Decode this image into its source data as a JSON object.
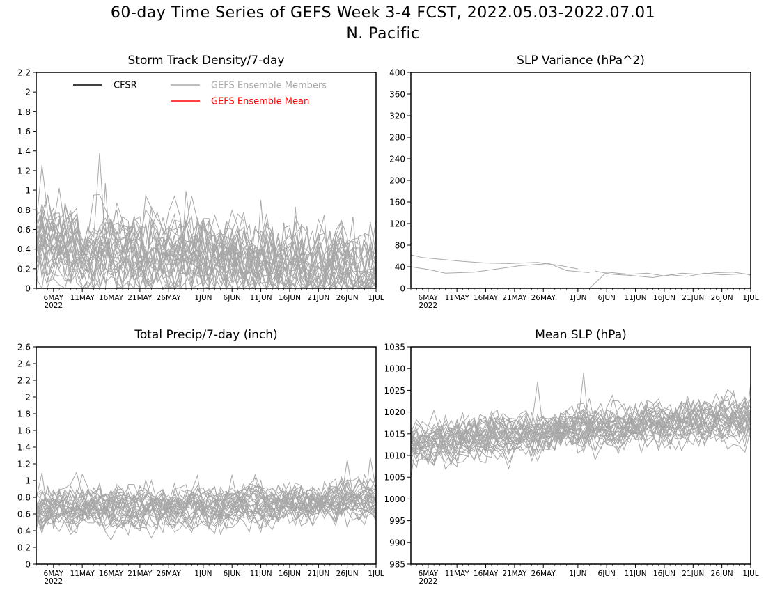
{
  "figure": {
    "title": "60-day Time Series of GEFS Week 3-4 FCST, 2022.05.03-2022.07.01",
    "subtitle": "N. Pacific"
  },
  "colors": {
    "cfsr": "#000000",
    "members": "#a8a8a8",
    "mean": "#ff0000",
    "axis": "#000000"
  },
  "legend": {
    "placement": "top",
    "entries": [
      {
        "label": "CFSR",
        "color": "#000000"
      },
      {
        "label": "GEFS Ensemble Members",
        "color": "#a8a8a8"
      },
      {
        "label": "GEFS Ensemble Mean",
        "color": "#ff0000"
      }
    ]
  },
  "x_axis": {
    "start_date": "2022-05-03",
    "end_date": "2022-07-01",
    "tick_dates": [
      "2022-05-06",
      "2022-05-11",
      "2022-05-16",
      "2022-05-21",
      "2022-05-26",
      "2022-06-01",
      "2022-06-06",
      "2022-06-11",
      "2022-06-16",
      "2022-06-21",
      "2022-06-26",
      "2022-07-01"
    ],
    "tick_labels": [
      "6MAY",
      "11MAY",
      "16MAY",
      "21MAY",
      "26MAY",
      "1JUN",
      "6JUN",
      "11JUN",
      "16JUN",
      "21JUN",
      "26JUN",
      "1JUL"
    ],
    "year_label": "2022"
  },
  "chart_data": [
    {
      "type": "line",
      "title": "Storm Track Density/7-day",
      "xlabel": "",
      "ylabel": "",
      "ylim": [
        0,
        2.2
      ],
      "yticks": [
        0,
        0.2,
        0.4,
        0.6,
        0.8,
        1,
        1.2,
        1.4,
        1.6,
        1.8,
        2,
        2.2
      ],
      "ytick_labels": [
        "0",
        "0.2",
        "0.4",
        "0.6",
        "0.8",
        "1",
        "1.2",
        "1.4",
        "1.6",
        "1.8",
        "2",
        "2.2"
      ],
      "grid": false,
      "members": {
        "count": 31,
        "mean_start": 0.45,
        "mean_end": 0.15,
        "spread": 0.22,
        "peaks": [
          {
            "date": "2022-05-04",
            "value": 1.26
          },
          {
            "date": "2022-05-14",
            "value": 1.38
          },
          {
            "date": "2022-05-15",
            "value": 1.07
          },
          {
            "date": "2022-05-29",
            "value": 0.99
          },
          {
            "date": "2022-06-11",
            "value": 0.9
          },
          {
            "date": "2022-06-17",
            "value": 0.83
          },
          {
            "date": "2022-06-27",
            "value": 0.73
          }
        ]
      }
    },
    {
      "type": "line",
      "title": "SLP Variance (hPa^2)",
      "xlabel": "",
      "ylabel": "",
      "ylim": [
        0,
        400
      ],
      "yticks": [
        0,
        40,
        80,
        120,
        160,
        200,
        240,
        280,
        320,
        360,
        400
      ],
      "ytick_labels": [
        "0",
        "40",
        "80",
        "120",
        "160",
        "200",
        "240",
        "280",
        "320",
        "360",
        "400"
      ],
      "grid": false,
      "series": [
        {
          "name": "",
          "x": [
            "2022-05-03",
            "2022-05-05",
            "2022-05-08",
            "2022-05-12",
            "2022-05-16",
            "2022-05-20",
            "2022-05-25",
            "2022-05-29",
            "2022-06-01"
          ],
          "values": [
            62,
            57,
            54,
            50,
            47,
            46,
            48,
            42,
            36
          ]
        },
        {
          "name": "",
          "x": [
            "2022-05-03",
            "2022-05-06",
            "2022-05-09",
            "2022-05-14",
            "2022-05-18",
            "2022-05-22",
            "2022-05-27",
            "2022-05-30",
            "2022-06-03"
          ],
          "values": [
            40,
            35,
            28,
            30,
            36,
            42,
            46,
            33,
            29
          ]
        },
        {
          "name": "",
          "x": [
            "2022-06-03",
            "2022-06-06",
            "2022-06-10",
            "2022-06-13",
            "2022-06-16",
            "2022-06-19",
            "2022-06-22",
            "2022-06-25",
            "2022-06-28",
            "2022-07-01"
          ],
          "values": [
            0,
            30,
            26,
            28,
            23,
            28,
            26,
            29,
            30,
            25
          ]
        },
        {
          "name": "",
          "x": [
            "2022-06-04",
            "2022-06-07",
            "2022-06-10",
            "2022-06-14",
            "2022-06-17",
            "2022-06-20",
            "2022-06-23",
            "2022-06-26",
            "2022-06-30",
            "2022-07-01"
          ],
          "values": [
            32,
            26,
            24,
            20,
            25,
            22,
            28,
            25,
            27,
            24
          ]
        }
      ]
    },
    {
      "type": "line",
      "title": "Total Precip/7-day (inch)",
      "xlabel": "",
      "ylabel": "",
      "ylim": [
        0,
        2.6
      ],
      "yticks": [
        0,
        0.2,
        0.4,
        0.6,
        0.8,
        1,
        1.2,
        1.4,
        1.6,
        1.8,
        2,
        2.2,
        2.4,
        2.6
      ],
      "ytick_labels": [
        "0",
        "0.2",
        "0.4",
        "0.6",
        "0.8",
        "1",
        "1.2",
        "1.4",
        "1.6",
        "1.8",
        "2",
        "2.2",
        "2.4",
        "2.6"
      ],
      "grid": false,
      "members": {
        "count": 31,
        "mean_start": 0.65,
        "mean_end": 0.75,
        "spread": 0.13,
        "peaks": [
          {
            "date": "2022-05-04",
            "value": 1.09
          },
          {
            "date": "2022-05-31",
            "value": 1.06
          },
          {
            "date": "2022-06-26",
            "value": 1.25
          },
          {
            "date": "2022-06-30",
            "value": 1.28
          }
        ]
      }
    },
    {
      "type": "line",
      "title": "Mean SLP (hPa)",
      "xlabel": "",
      "ylabel": "",
      "ylim": [
        985,
        1035
      ],
      "yticks": [
        985,
        990,
        995,
        1000,
        1005,
        1010,
        1015,
        1020,
        1025,
        1030,
        1035
      ],
      "ytick_labels": [
        "985",
        "990",
        "995",
        "1000",
        "1005",
        "1010",
        "1015",
        "1020",
        "1025",
        "1030",
        "1035"
      ],
      "grid": false,
      "members": {
        "count": 31,
        "mean_start": 1013,
        "mean_end": 1019,
        "spread": 2.6,
        "peaks": [
          {
            "date": "2022-05-03",
            "value": 1005
          },
          {
            "date": "2022-05-25",
            "value": 1027
          },
          {
            "date": "2022-06-02",
            "value": 1029
          },
          {
            "date": "2022-07-01",
            "value": 1026.5
          }
        ]
      }
    }
  ]
}
